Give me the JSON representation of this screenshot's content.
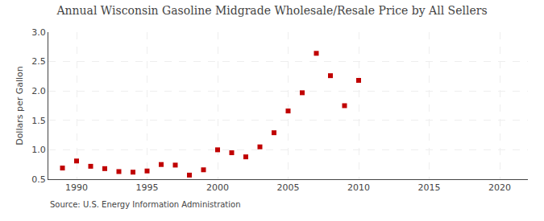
{
  "chart_data": {
    "type": "scatter",
    "title": "Annual Wisconsin Gasoline Midgrade Wholesale/Resale Price by All Sellers",
    "ylabel": "Dollars per Gallon",
    "annotations": [
      "Source: U.S. Energy Information Administration"
    ],
    "x": [
      1989,
      1990,
      1991,
      1992,
      1993,
      1994,
      1995,
      1996,
      1997,
      1998,
      1999,
      2000,
      2001,
      2002,
      2003,
      2004,
      2005,
      2006,
      2007,
      2008,
      2009,
      2010
    ],
    "values": [
      0.69,
      0.81,
      0.72,
      0.68,
      0.63,
      0.62,
      0.64,
      0.75,
      0.74,
      0.57,
      0.66,
      1.0,
      0.95,
      0.88,
      1.05,
      1.29,
      1.66,
      1.97,
      2.64,
      2.26,
      1.75,
      2.18
    ],
    "color": "#c00000",
    "marker": "square",
    "xlim": [
      1988,
      2022
    ],
    "ylim": [
      0.5,
      3.0
    ],
    "xticks": [
      1990,
      1995,
      2000,
      2005,
      2010,
      2015,
      2020
    ],
    "yticks": [
      0.5,
      {
        "value": 1.0,
        "label": "1.0"
      },
      1.5,
      {
        "value": 2.0,
        "label": "2.0"
      },
      2.5,
      {
        "value": 3.0,
        "label": "3.0"
      }
    ],
    "grid": true
  }
}
